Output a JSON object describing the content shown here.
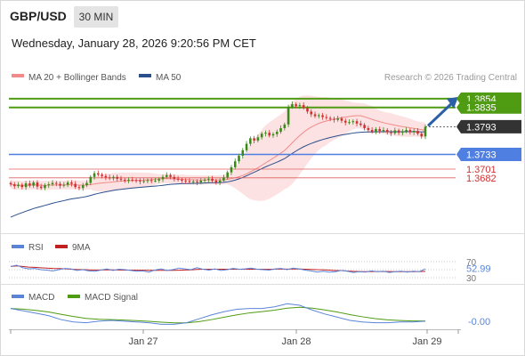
{
  "header": {
    "symbol": "GBP/USD",
    "timeframe": "30 MIN",
    "datetime": "Wednesday, January 28, 2026 9:20:56 PM CET"
  },
  "colors": {
    "ma20": "#f28a8a",
    "ma50": "#2b4f8c",
    "bollinger_fill": "#fbd5d5",
    "resistance": "#4f9b12",
    "support": "#4f7fe0",
    "minor_level": "#e06060",
    "bull": "#3a8a1a",
    "bear": "#d03030",
    "rsi": "#5b84d9",
    "rsi_ma": "#c02020",
    "macd": "#5b84d9",
    "macd_signal": "#4f9b12",
    "price_tag": "#333333",
    "arrow": "#2b5fa8"
  },
  "chart_data": [
    {
      "type": "candlestick",
      "title": "GBP/USD",
      "legend": [
        {
          "name": "MA 20 + Bollinger Bands",
          "color": "#f28a8a"
        },
        {
          "name": "MA 50",
          "color": "#2b4f8c"
        }
      ],
      "source": "Research © 2026 Trading Central",
      "ylim": [
        1.3585,
        1.3875
      ],
      "levels": [
        {
          "label": "1.3854",
          "value": 1.3854,
          "kind": "resistance"
        },
        {
          "label": "1.3835",
          "value": 1.3835,
          "kind": "resistance"
        },
        {
          "label": "1.3793",
          "value": 1.3793,
          "kind": "last"
        },
        {
          "label": "1.3733",
          "value": 1.3733,
          "kind": "support"
        },
        {
          "label": "1.3701",
          "value": 1.3701,
          "kind": "minor"
        },
        {
          "label": "1.3682",
          "value": 1.3682,
          "kind": "minor"
        }
      ],
      "x_ticks": [
        "Jan 27",
        "Jan 28",
        "Jan 29"
      ],
      "closes": [
        1.3668,
        1.3664,
        1.3667,
        1.3662,
        1.367,
        1.3665,
        1.3672,
        1.3663,
        1.366,
        1.3666,
        1.3668,
        1.3671,
        1.3669,
        1.3665,
        1.3667,
        1.3672,
        1.3669,
        1.3662,
        1.366,
        1.3666,
        1.3671,
        1.3684,
        1.3692,
        1.3689,
        1.3686,
        1.3683,
        1.3681,
        1.3684,
        1.368,
        1.3678,
        1.3676,
        1.3678,
        1.3677,
        1.3676,
        1.3674,
        1.3675,
        1.3677,
        1.3676,
        1.3676,
        1.3679,
        1.3684,
        1.3688,
        1.3684,
        1.368,
        1.3678,
        1.3676,
        1.3675,
        1.3673,
        1.3674,
        1.3672,
        1.3676,
        1.3678,
        1.368,
        1.3676,
        1.3672,
        1.3676,
        1.3683,
        1.3694,
        1.3705,
        1.3718,
        1.373,
        1.3742,
        1.3756,
        1.3768,
        1.3763,
        1.377,
        1.3778,
        1.378,
        1.3774,
        1.3777,
        1.3782,
        1.379,
        1.3798,
        1.3836,
        1.3842,
        1.3838,
        1.384,
        1.3834,
        1.3826,
        1.382,
        1.3816,
        1.3818,
        1.3814,
        1.3812,
        1.381,
        1.3808,
        1.3811,
        1.3806,
        1.3802,
        1.3803,
        1.3805,
        1.38,
        1.3797,
        1.379,
        1.3786,
        1.3782,
        1.3788,
        1.3784,
        1.3786,
        1.3781,
        1.3779,
        1.3785,
        1.378,
        1.3783,
        1.3786,
        1.3781,
        1.3784,
        1.3778,
        1.3772,
        1.3793
      ],
      "rsi": {
        "label": "RSI",
        "ma_label": "9MA",
        "last": "52.99",
        "levels": [
          70,
          30
        ],
        "values": [
          58,
          61,
          55,
          52,
          53,
          50,
          49,
          47,
          50,
          53,
          52,
          48,
          50,
          47,
          46,
          49,
          52,
          48,
          51,
          50,
          48,
          46,
          47,
          44,
          49,
          52,
          48,
          50,
          54,
          52,
          50,
          55,
          51,
          49,
          52,
          48,
          50,
          53,
          51,
          52,
          54,
          51,
          50,
          49,
          52,
          53,
          50,
          54,
          52,
          49,
          47,
          44,
          46,
          44,
          45,
          48,
          46,
          43,
          45,
          44,
          47,
          45,
          46,
          43,
          45,
          46,
          44,
          46,
          45,
          52
        ]
      },
      "macd": {
        "label": "MACD",
        "signal_label": "MACD Signal",
        "last": "-0.00",
        "values": [
          0.0012,
          0.0009,
          0.0006,
          0.0003,
          -0.0002,
          -0.0005,
          -0.0006,
          -0.0004,
          -0.0003,
          -0.0004,
          -0.0005,
          -0.0006,
          -0.0008,
          -0.0008,
          -0.0006,
          -0.0001,
          0.0004,
          0.0008,
          0.0011,
          0.0012,
          0.0012,
          0.0014,
          0.0018,
          0.0016,
          0.001,
          0.0005,
          0.0001,
          -0.0003,
          -0.0005,
          -0.0006,
          -0.0006,
          -0.0005,
          -0.0005,
          -0.0004
        ]
      }
    }
  ]
}
